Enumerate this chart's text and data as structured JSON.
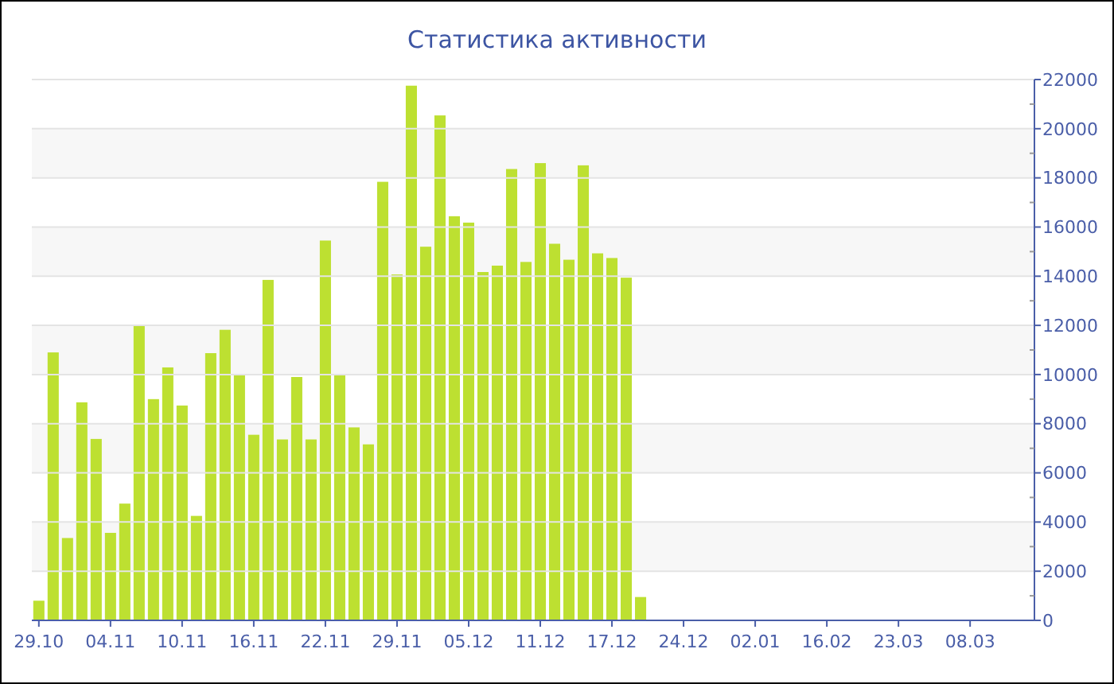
{
  "chart_data": {
    "type": "bar",
    "title": "Статистика активности",
    "categories": [
      "29.10",
      null,
      null,
      null,
      null,
      "04.11",
      null,
      null,
      null,
      null,
      "10.11",
      null,
      null,
      null,
      null,
      "16.11",
      null,
      null,
      null,
      null,
      "22.11",
      null,
      null,
      null,
      null,
      "29.11",
      null,
      null,
      null,
      null,
      "05.12",
      null,
      null,
      null,
      null,
      "11.12",
      null,
      null,
      null,
      null,
      "17.12",
      null,
      null,
      null,
      null,
      "24.12",
      null,
      null,
      null,
      null,
      "02.01",
      null,
      null,
      null,
      null,
      "16.02",
      null,
      null,
      null,
      null,
      "23.03",
      null,
      null,
      null,
      null,
      "08.03",
      null,
      null,
      null,
      null
    ],
    "values": [
      800,
      10900,
      3350,
      8870,
      7380,
      3560,
      4750,
      11970,
      9000,
      10290,
      8740,
      4250,
      10870,
      11820,
      9970,
      7550,
      13850,
      7360,
      9900,
      7360,
      15450,
      9970,
      7850,
      7160,
      17840,
      14070,
      21750,
      15200,
      20540,
      16440,
      16180,
      14170,
      14430,
      18360,
      14580,
      18600,
      15320,
      14670,
      18510,
      14930,
      14740,
      13940,
      950,
      0,
      0,
      0,
      0,
      0,
      0,
      0,
      0,
      0,
      0,
      0,
      0,
      0,
      0,
      0,
      0,
      0,
      0,
      0,
      0,
      0,
      0,
      0,
      0,
      0,
      0,
      0
    ],
    "color": "#bde031",
    "ylim": [
      0,
      22000
    ],
    "yticks": [
      0,
      2000,
      4000,
      6000,
      8000,
      10000,
      12000,
      14000,
      16000,
      18000,
      20000,
      22000
    ],
    "grid": "y"
  }
}
